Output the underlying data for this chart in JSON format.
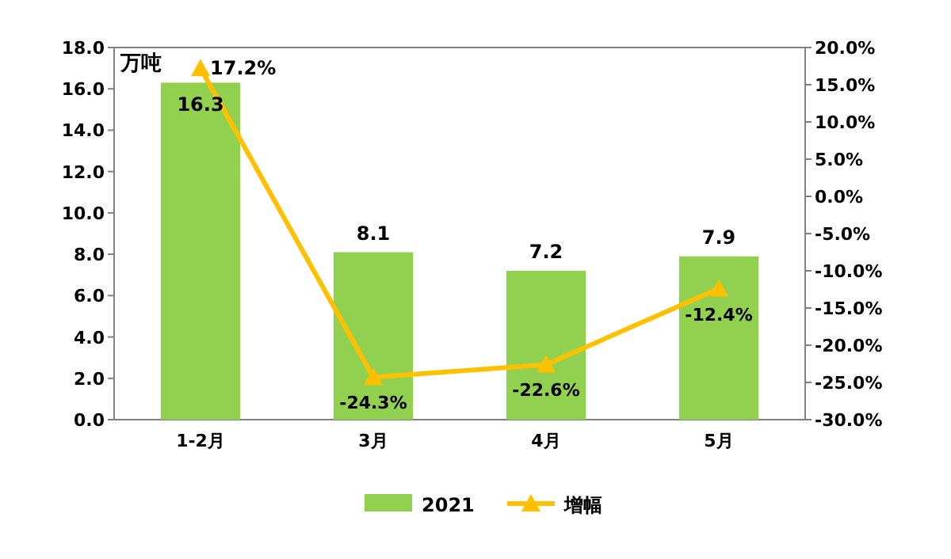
{
  "chart_data": {
    "type": "bar",
    "categories": [
      "1-2月",
      "3月",
      "4月",
      "5月"
    ],
    "ylabel": "万吨",
    "legend": "bottom",
    "marker": "triangle",
    "series": [
      {
        "name": "2021",
        "color": "#92d050",
        "values": [
          16.3,
          8.1,
          7.2,
          7.9
        ],
        "value_labels": [
          "16.3",
          "8.1",
          "7.2",
          "7.9"
        ]
      },
      {
        "name": "增幅",
        "type": "line",
        "axis": "y2",
        "color": "#ffc000",
        "values": [
          17.2,
          -24.3,
          -22.6,
          -12.4
        ],
        "value_labels": [
          "17.2%",
          "-24.3%",
          "-22.6%",
          "-12.4%"
        ]
      }
    ],
    "ylim": [
      0,
      18
    ],
    "yticks": [
      {
        "value": 0,
        "label": "0.0"
      },
      {
        "value": 2,
        "label": "2.0"
      },
      {
        "value": 4,
        "label": "4.0"
      },
      {
        "value": 6,
        "label": "6.0"
      },
      {
        "value": 8,
        "label": "8.0"
      },
      {
        "value": 10,
        "label": "10.0"
      },
      {
        "value": 12,
        "label": "12.0"
      },
      {
        "value": 14,
        "label": "14.0"
      },
      {
        "value": 16,
        "label": "16.0"
      },
      {
        "value": 18,
        "label": "18.0"
      }
    ],
    "y2lim": [
      -30,
      20
    ],
    "y2ticks": [
      {
        "value": -30,
        "label": "-30.0%"
      },
      {
        "value": -25,
        "label": "-25.0%"
      },
      {
        "value": -20,
        "label": "-20.0%"
      },
      {
        "value": -15,
        "label": "-15.0%"
      },
      {
        "value": -10,
        "label": "-10.0%"
      },
      {
        "value": -5,
        "label": "-5.0%"
      },
      {
        "value": 0,
        "label": "0.0%"
      },
      {
        "value": 5,
        "label": "5.0%"
      },
      {
        "value": 10,
        "label": "10.0%"
      },
      {
        "value": 15,
        "label": "15.0%"
      },
      {
        "value": 20,
        "label": "20.0%"
      }
    ]
  }
}
